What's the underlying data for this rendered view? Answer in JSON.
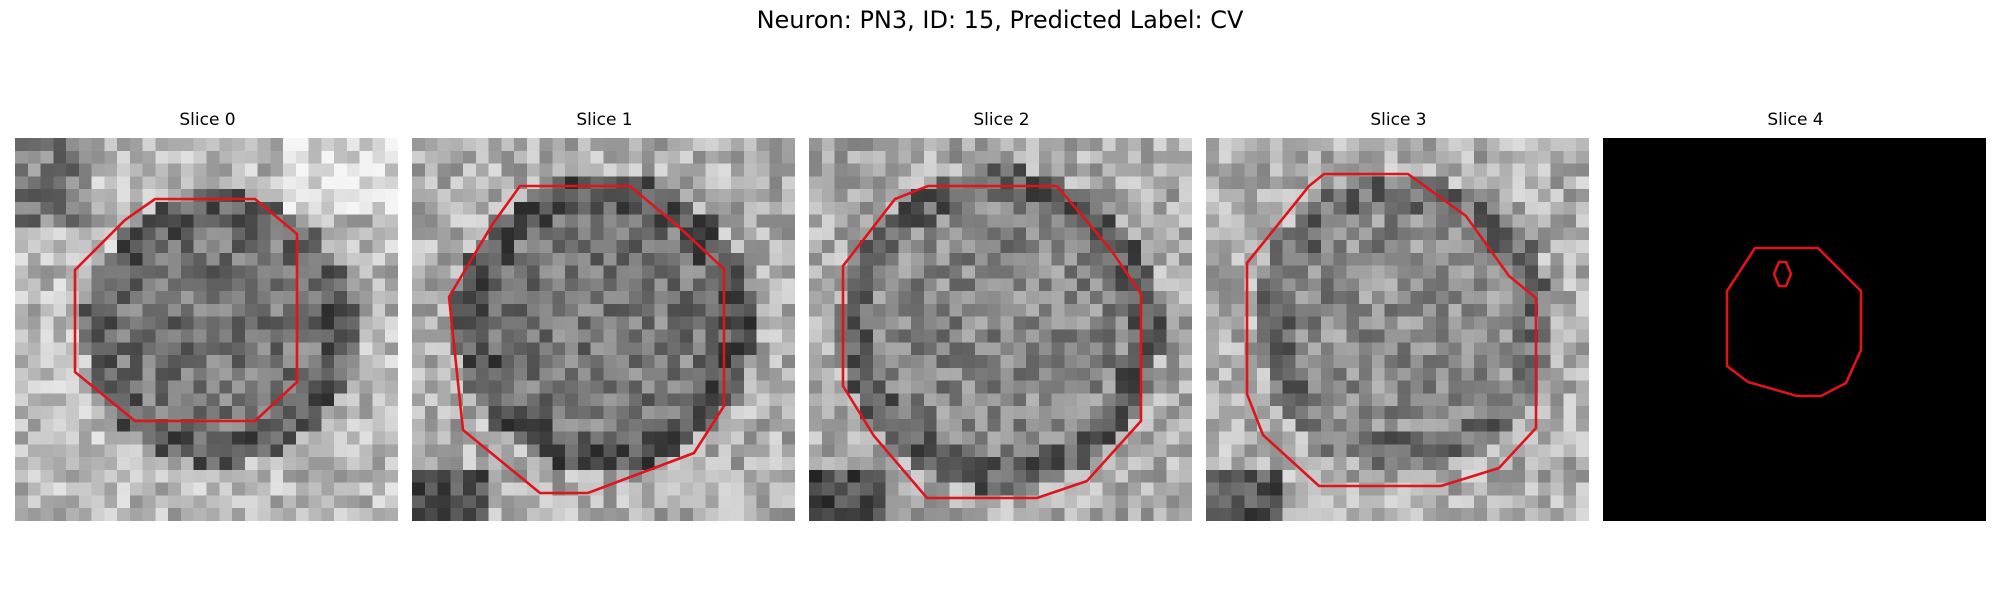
{
  "figure": {
    "title": "Neuron: PN3, ID: 15, Predicted Label: CV"
  },
  "panels": [
    {
      "title": "Slice 0",
      "image": "grayscale-microscopy-slice",
      "contour_color": "#e0141b"
    },
    {
      "title": "Slice 1",
      "image": "grayscale-microscopy-slice",
      "contour_color": "#e0141b"
    },
    {
      "title": "Slice 2",
      "image": "grayscale-microscopy-slice",
      "contour_color": "#e0141b"
    },
    {
      "title": "Slice 3",
      "image": "grayscale-microscopy-slice",
      "contour_color": "#e0141b"
    },
    {
      "title": "Slice 4",
      "image": "black-mask",
      "contour_color": "#e0141b"
    }
  ]
}
